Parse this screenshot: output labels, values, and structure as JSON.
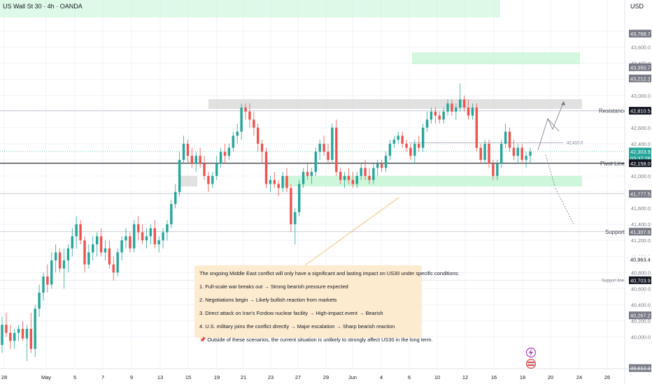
{
  "window": {
    "title": "US Wall St 30 · 4h · OANDA",
    "currency": "USD"
  },
  "colors": {
    "up": "#26a69a",
    "down": "#ef5350",
    "demand": "#c8f5d7",
    "supply": "#d9d9d9",
    "line": "#131722",
    "note": "#fdebd0"
  },
  "icons": [
    "lightning-icon",
    "us-flag-icon"
  ],
  "chart_data": {
    "type": "candlestick",
    "symbol": "US Wall St 30",
    "timeframe": "4h",
    "source": "OANDA",
    "ylim": [
      39600,
      43900
    ],
    "y_ticks": [
      40000,
      40200,
      40400,
      40600,
      40800,
      41000,
      41200,
      41400,
      41600,
      41800,
      42000,
      42200,
      42400,
      42600,
      42800,
      43000,
      43200,
      43400,
      43600,
      43800
    ],
    "x_tick_labels": [
      "28",
      "May",
      "5",
      "7",
      "9",
      "13",
      "15",
      "19",
      "21",
      "23",
      "27",
      "29",
      "Jun",
      "4",
      "6",
      "10",
      "12",
      "16",
      "18",
      "20",
      "24",
      "26"
    ],
    "price_labels": [
      {
        "text": "43,768.7",
        "value": 43768.7,
        "style": "gray"
      },
      {
        "text": "43,350.7",
        "value": 43350.7,
        "style": "gray"
      },
      {
        "text": "43,212.2",
        "value": 43212.2,
        "style": "gray"
      },
      {
        "text": "42,810.5",
        "value": 42810.5,
        "style": "dark"
      },
      {
        "text": "42,303.9",
        "value": 42303.9,
        "style": "teal"
      },
      {
        "text": "03:37:28",
        "value": 42220,
        "style": "teal"
      },
      {
        "text": "42,158.0",
        "value": 42158.0,
        "style": "dark"
      },
      {
        "text": "41,777.5",
        "value": 41777.5,
        "style": "gray"
      },
      {
        "text": "41,307.6",
        "value": 41307.6,
        "style": "gray"
      },
      {
        "text": "40,963.4",
        "value": 40963.4,
        "style": "plain"
      },
      {
        "text": "40,703.9",
        "value": 40703.9,
        "style": "dark"
      },
      {
        "text": "40,267.2",
        "value": 40267.2,
        "style": "gray"
      },
      {
        "text": "39,612.3",
        "value": 39612.3,
        "style": "gray"
      }
    ],
    "levels": [
      {
        "name": "Resistance",
        "value": 42810.5
      },
      {
        "name": "Pivot Line",
        "value": 42158.0
      },
      {
        "name": "Support",
        "value": 41307.6
      },
      {
        "name": "Support line",
        "value": 40703.9
      },
      {
        "name": "",
        "value": 41777.5
      }
    ],
    "level_42410": "42,410.0",
    "candles": [
      [
        39900,
        40250,
        39800,
        40150
      ],
      [
        40150,
        40300,
        40000,
        40050
      ],
      [
        40050,
        40150,
        39850,
        39950
      ],
      [
        39950,
        40100,
        39850,
        40050
      ],
      [
        40050,
        40150,
        39950,
        40100
      ],
      [
        40100,
        40200,
        39950,
        39980
      ],
      [
        39980,
        40150,
        39700,
        40100
      ],
      [
        40100,
        40300,
        39800,
        39850
      ],
      [
        39850,
        40400,
        39750,
        40350
      ],
      [
        40350,
        40650,
        40250,
        40550
      ],
      [
        40550,
        40800,
        40450,
        40750
      ],
      [
        40750,
        40900,
        40550,
        40650
      ],
      [
        40650,
        41050,
        40600,
        40950
      ],
      [
        40950,
        41150,
        40800,
        41050
      ],
      [
        41050,
        41100,
        40800,
        40850
      ],
      [
        40850,
        41100,
        40600,
        40950
      ],
      [
        40950,
        41150,
        40800,
        41100
      ],
      [
        41100,
        41350,
        41000,
        41250
      ],
      [
        41250,
        41500,
        41100,
        41400
      ],
      [
        41400,
        41450,
        41150,
        41200
      ],
      [
        41200,
        41250,
        40800,
        40900
      ],
      [
        40900,
        41150,
        40850,
        41050
      ],
      [
        41050,
        41250,
        40950,
        41150
      ],
      [
        41150,
        41300,
        41000,
        41250
      ],
      [
        41250,
        41350,
        41000,
        41050
      ],
      [
        41050,
        41200,
        40950,
        41100
      ],
      [
        41100,
        41200,
        40850,
        40900
      ],
      [
        40900,
        41000,
        40700,
        40800
      ],
      [
        40800,
        41100,
        40750,
        41050
      ],
      [
        41050,
        41250,
        40950,
        41200
      ],
      [
        41200,
        41350,
        41100,
        41250
      ],
      [
        41250,
        41300,
        41050,
        41100
      ],
      [
        41100,
        41450,
        41050,
        41400
      ],
      [
        41400,
        41500,
        41200,
        41300
      ],
      [
        41300,
        41400,
        41150,
        41200
      ],
      [
        41200,
        41350,
        41100,
        41250
      ],
      [
        41250,
        41400,
        41150,
        41350
      ],
      [
        41350,
        41450,
        41100,
        41150
      ],
      [
        41150,
        41250,
        41050,
        41200
      ],
      [
        41200,
        41350,
        41100,
        41300
      ],
      [
        41300,
        41450,
        41200,
        41400
      ],
      [
        41400,
        41700,
        41350,
        41650
      ],
      [
        41650,
        41900,
        41600,
        41800
      ],
      [
        41800,
        42300,
        41750,
        42200
      ],
      [
        42200,
        42500,
        42150,
        42400
      ],
      [
        42400,
        42450,
        42150,
        42250
      ],
      [
        42250,
        42350,
        42100,
        42150
      ],
      [
        42150,
        42300,
        42050,
        42250
      ],
      [
        42250,
        42350,
        42100,
        42150
      ],
      [
        42150,
        42250,
        41950,
        42000
      ],
      [
        42000,
        42050,
        41800,
        41900
      ],
      [
        41900,
        42050,
        41850,
        42000
      ],
      [
        42000,
        42250,
        41950,
        42150
      ],
      [
        42150,
        42350,
        42100,
        42300
      ],
      [
        42300,
        42400,
        42150,
        42250
      ],
      [
        42250,
        42400,
        42200,
        42350
      ],
      [
        42350,
        42550,
        42300,
        42500
      ],
      [
        42500,
        42650,
        42400,
        42550
      ],
      [
        42550,
        42900,
        42450,
        42850
      ],
      [
        42850,
        42900,
        42700,
        42800
      ],
      [
        42800,
        42900,
        42600,
        42700
      ],
      [
        42700,
        42800,
        42500,
        42600
      ],
      [
        42600,
        42650,
        42300,
        42400
      ],
      [
        42400,
        42450,
        42150,
        42300
      ],
      [
        42300,
        42350,
        41850,
        41900
      ],
      [
        41900,
        42000,
        41800,
        41950
      ],
      [
        41950,
        42050,
        41850,
        41900
      ],
      [
        41900,
        41950,
        41750,
        41850
      ],
      [
        41850,
        42050,
        41800,
        42000
      ],
      [
        42000,
        42100,
        41800,
        41850
      ],
      [
        41850,
        41900,
        41300,
        41400
      ],
      [
        41400,
        41600,
        41150,
        41550
      ],
      [
        41550,
        41950,
        41500,
        41900
      ],
      [
        41900,
        42100,
        41850,
        42050
      ],
      [
        42050,
        42150,
        41950,
        42000
      ],
      [
        42000,
        42100,
        41900,
        42050
      ],
      [
        42050,
        42350,
        42000,
        42300
      ],
      [
        42300,
        42450,
        42200,
        42400
      ],
      [
        42400,
        42500,
        42250,
        42300
      ],
      [
        42300,
        42400,
        42150,
        42200
      ],
      [
        42200,
        42650,
        42150,
        42600
      ],
      [
        42600,
        42700,
        42000,
        42050
      ],
      [
        42050,
        42100,
        41900,
        41950
      ],
      [
        41950,
        42050,
        41850,
        42000
      ],
      [
        42000,
        42100,
        41900,
        41950
      ],
      [
        41950,
        42050,
        41850,
        41900
      ],
      [
        41900,
        42050,
        41850,
        42000
      ],
      [
        42000,
        42150,
        41950,
        42100
      ],
      [
        42100,
        42200,
        41950,
        42000
      ],
      [
        42000,
        42100,
        41900,
        41950
      ],
      [
        41950,
        42150,
        41900,
        42100
      ],
      [
        42100,
        42200,
        42000,
        42150
      ],
      [
        42150,
        42200,
        42050,
        42100
      ],
      [
        42100,
        42300,
        42050,
        42250
      ],
      [
        42250,
        42450,
        42200,
        42400
      ],
      [
        42400,
        42500,
        42350,
        42450
      ],
      [
        42450,
        42550,
        42400,
        42500
      ],
      [
        42500,
        42550,
        42350,
        42400
      ],
      [
        42400,
        42450,
        42300,
        42350
      ],
      [
        42350,
        42400,
        42200,
        42250
      ],
      [
        42250,
        42450,
        42150,
        42400
      ],
      [
        42400,
        42500,
        42300,
        42350
      ],
      [
        42350,
        42650,
        42300,
        42600
      ],
      [
        42600,
        42800,
        42550,
        42700
      ],
      [
        42700,
        42850,
        42650,
        42800
      ],
      [
        42800,
        42850,
        42650,
        42750
      ],
      [
        42750,
        42800,
        42650,
        42700
      ],
      [
        42700,
        42850,
        42650,
        42800
      ],
      [
        42800,
        42950,
        42750,
        42900
      ],
      [
        42900,
        42950,
        42750,
        42800
      ],
      [
        42800,
        42900,
        42700,
        42850
      ],
      [
        42850,
        43150,
        42800,
        42950
      ],
      [
        42950,
        43000,
        42800,
        42850
      ],
      [
        42850,
        42950,
        42700,
        42750
      ],
      [
        42750,
        42900,
        42700,
        42850
      ],
      [
        42850,
        42900,
        42300,
        42350
      ],
      [
        42350,
        42400,
        42150,
        42200
      ],
      [
        42200,
        42450,
        42150,
        42400
      ],
      [
        42400,
        42450,
        42100,
        42150
      ],
      [
        42150,
        42200,
        41950,
        42000
      ],
      [
        42000,
        42200,
        41950,
        42150
      ],
      [
        42150,
        42450,
        42100,
        42400
      ],
      [
        42400,
        42650,
        42350,
        42550
      ],
      [
        42550,
        42600,
        42300,
        42350
      ],
      [
        42350,
        42450,
        42200,
        42250
      ],
      [
        42250,
        42400,
        42150,
        42350
      ],
      [
        42350,
        42400,
        42150,
        42200
      ],
      [
        42200,
        42300,
        42100,
        42250
      ],
      [
        42250,
        42350,
        42150,
        42300
      ]
    ],
    "annotation": {
      "intro": "The ongoing Middle East conflict will only have a significant and lasting impact on US30 under specific conditions:",
      "items": [
        "1. Full-scale war breaks out → Strong bearish pressure expected",
        "2. Negotiations begin → Likely bullish reaction from markets",
        "3. Direct attack on Iran's Fordow nuclear facility → High-impact event → Bearish",
        "4. U.S. military joins the conflict directly → Major escalation → Sharp bearish reaction"
      ],
      "footer": "Outside of these scenarios, the current situation is unlikely to strongly affect US30 in the long term."
    }
  }
}
